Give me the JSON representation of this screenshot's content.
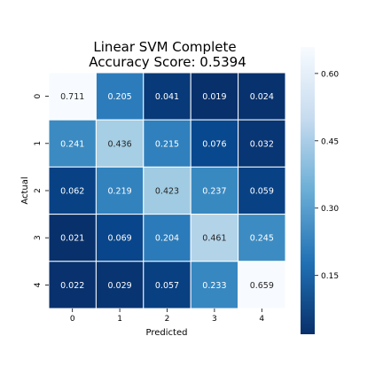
{
  "chart_data": {
    "type": "heatmap",
    "title": [
      "Linear SVM Complete",
      "Accuracy Score: 0.5394"
    ],
    "xlabel": "Predicted",
    "ylabel": "Actual",
    "x_categories": [
      "0",
      "1",
      "2",
      "3",
      "4"
    ],
    "y_categories": [
      "0",
      "1",
      "2",
      "3",
      "4"
    ],
    "values": [
      [
        0.711,
        0.205,
        0.041,
        0.019,
        0.024
      ],
      [
        0.241,
        0.436,
        0.215,
        0.076,
        0.032
      ],
      [
        0.062,
        0.219,
        0.423,
        0.237,
        0.059
      ],
      [
        0.021,
        0.069,
        0.204,
        0.461,
        0.245
      ],
      [
        0.022,
        0.029,
        0.057,
        0.233,
        0.659
      ]
    ],
    "cell_labels": [
      [
        "0.711",
        "0.205",
        "0.041",
        "0.019",
        "0.024"
      ],
      [
        "0.241",
        "0.436",
        "0.215",
        "0.076",
        "0.032"
      ],
      [
        "0.062",
        "0.219",
        "0.423",
        "0.237",
        "0.059"
      ],
      [
        "0.021",
        "0.069",
        "0.204",
        "0.461",
        "0.245"
      ],
      [
        "0.022",
        "0.029",
        "0.057",
        "0.233",
        "0.659"
      ]
    ],
    "colormap": "Blues_r",
    "color_range": [
      0.019,
      0.659
    ],
    "colorbar_ticks": [
      {
        "value": 0.6,
        "label": "0.60"
      },
      {
        "value": 0.45,
        "label": "0.45"
      },
      {
        "value": 0.3,
        "label": "0.30"
      },
      {
        "value": 0.15,
        "label": "0.15"
      }
    ],
    "colors": {
      "low": "#08306b",
      "mid": "#4292c6",
      "high": "#f7fbff",
      "text_dark": "#262626",
      "text_light": "#ffffff",
      "cell_border": "#ffffff"
    }
  }
}
